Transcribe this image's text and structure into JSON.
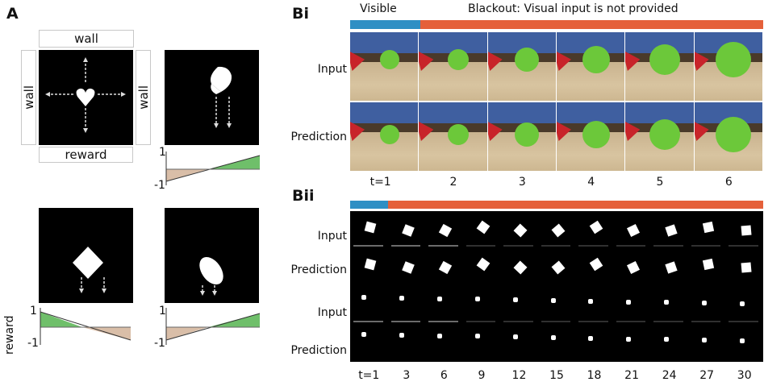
{
  "panelA": {
    "letter": "A",
    "wall_top": "wall",
    "wall_left": "wall",
    "wall_right": "wall",
    "reward_box": "reward",
    "reward_axis_label": "reward",
    "plot_y_max": "1",
    "plot_y_min": "-1"
  },
  "panelBi": {
    "letter": "Bi",
    "visible_label": "Visible",
    "blackout_label": "Blackout: Visual input is not provided",
    "row_input": "Input",
    "row_prediction": "Prediction",
    "ticks": [
      "t=1",
      "2",
      "3",
      "4",
      "5",
      "6"
    ],
    "colors": {
      "visible": "#2f8fc4",
      "blackout": "#e5603a"
    }
  },
  "panelBii": {
    "letter": "Bii",
    "row_labels": [
      "Input",
      "Prediction",
      "Input",
      "Prediction"
    ],
    "ticks": [
      "t=1",
      "3",
      "6",
      "9",
      "12",
      "15",
      "18",
      "21",
      "24",
      "27",
      "30"
    ]
  }
}
